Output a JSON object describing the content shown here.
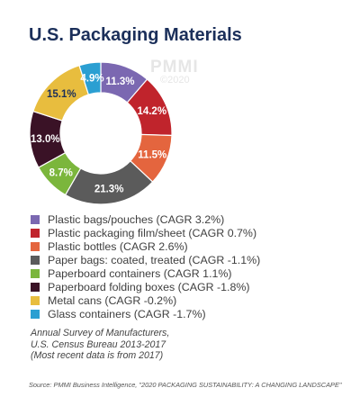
{
  "title": "U.S. Packaging Materials",
  "watermark": {
    "brand": "PMMI",
    "year": "©2020"
  },
  "chart_data": {
    "type": "pie",
    "donut": true,
    "slices": [
      {
        "label": "Plastic bags/pouches (CAGR 3.2%)",
        "value": 11.3,
        "display": "11.3%",
        "color": "#7b68b1"
      },
      {
        "label": "Plastic packaging film/sheet (CAGR 0.7%)",
        "value": 14.2,
        "display": "14.2%",
        "color": "#c0242c"
      },
      {
        "label": "Plastic bottles (CAGR 2.6%)",
        "value": 11.5,
        "display": "11.5%",
        "color": "#e4653e"
      },
      {
        "label": "Paper bags: coated, treated (CAGR -1.1%)",
        "value": 21.3,
        "display": "21.3%",
        "color": "#5b5b5b"
      },
      {
        "label": "Paperboard containers (CAGR 1.1%)",
        "value": 8.7,
        "display": "8.7%",
        "color": "#7bb63c"
      },
      {
        "label": "Paperboard folding boxes (CAGR -1.8%)",
        "value": 13.0,
        "display": "13.0%",
        "color": "#3a1226"
      },
      {
        "label": "Metal cans (CAGR -0.2%)",
        "value": 15.1,
        "display": "15.1%",
        "color": "#e8bd3e"
      },
      {
        "label": "Glass containers (CAGR -1.7%)",
        "value": 4.9,
        "display": "4.9%",
        "color": "#2b9fd2"
      }
    ]
  },
  "note": [
    "Annual Survey of Manufacturers,",
    "U.S. Census Bureau 2013-2017",
    "(Most recent data is from 2017)"
  ],
  "source": "Source: PMMI Business Intelligence, \"2020 PACKAGING SUSTAINABILITY: A CHANGING LANDSCAPE\""
}
